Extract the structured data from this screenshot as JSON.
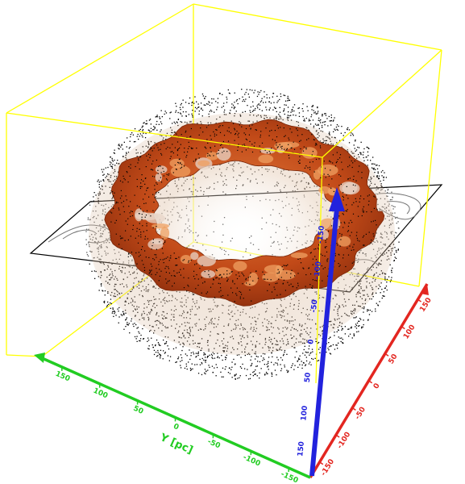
{
  "colors": {
    "bounding_box": "#ffff00",
    "x_axis": "#e32620",
    "y_axis": "#22cc22",
    "z_axis": "#2222dd",
    "cloud_dots": "#000000",
    "inner_shell": "#dcb89a",
    "ring_surface": "#c8501e",
    "plane_outline": "#000000",
    "contour_lines": "#777777"
  },
  "x_axis": {
    "ticks": [
      "-150",
      "-100",
      "-50",
      "0",
      "50",
      "100",
      "150"
    ]
  },
  "y_axis": {
    "title": "Y [pc]",
    "ticks": [
      "150",
      "100",
      "50",
      "0",
      "-50",
      "-100",
      "-150"
    ]
  },
  "z_axis": {
    "ticks": [
      "150",
      "100",
      "50",
      "0",
      "-50",
      "-100",
      "-150"
    ]
  }
}
